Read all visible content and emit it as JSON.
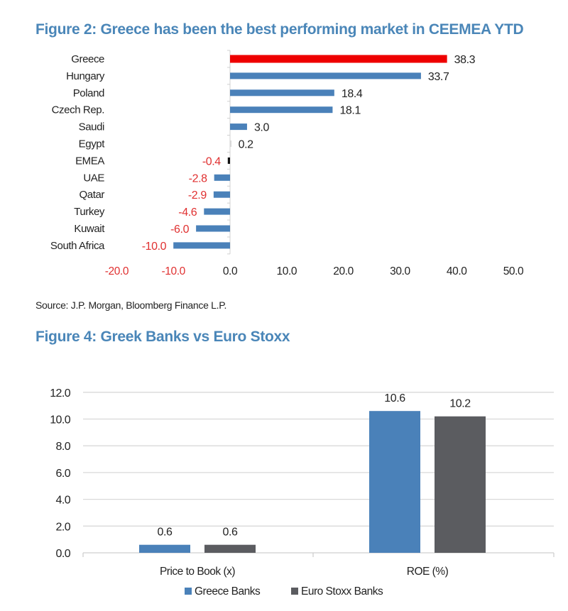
{
  "figure2": {
    "title": "Figure 2: Greece has been the best performing market in CEEMEA YTD",
    "source": "Source: J.P. Morgan, Bloomberg Finance L.P."
  },
  "figure4": {
    "title": "Figure 4: Greek Banks vs Euro Stoxx"
  },
  "colors": {
    "title": "#4a86b8",
    "highlight": "#ee0000",
    "bar_blue": "#4a81b9",
    "bar_gray": "#5b5c60",
    "negative_label": "#e03030",
    "label": "#222222",
    "grid": "#d9d9d9"
  },
  "chart_data": [
    {
      "type": "bar",
      "orientation": "horizontal",
      "title": "Figure 2: Greece has been the best performing market in CEEMEA YTD",
      "categories": [
        "Greece",
        "Hungary",
        "Poland",
        "Czech Rep.",
        "Saudi",
        "Egypt",
        "EMEA",
        "UAE",
        "Qatar",
        "Turkey",
        "Kuwait",
        "South Africa"
      ],
      "values": [
        38.3,
        33.7,
        18.4,
        18.1,
        3.0,
        0.2,
        -0.4,
        -2.8,
        -2.9,
        -4.6,
        -6.0,
        -10.0
      ],
      "value_labels": [
        "38.3",
        "33.7",
        "18.4",
        "18.1",
        "3.0",
        "0.2",
        "-0.4",
        "-2.8",
        "-2.9",
        "-4.6",
        "-6.0",
        "-10.0"
      ],
      "highlight": "Greece",
      "xlim": [
        -20,
        50
      ],
      "xticks": [
        -20,
        -10,
        0,
        10,
        20,
        30,
        40,
        50
      ],
      "xtick_labels": [
        "-20.0",
        "-10.0",
        "0.0",
        "10.0",
        "20.0",
        "30.0",
        "40.0",
        "50.0"
      ],
      "xlabel": "",
      "ylabel": "",
      "grid": false,
      "legend": "none"
    },
    {
      "type": "bar",
      "orientation": "vertical",
      "title": "Figure 4: Greek Banks vs Euro Stoxx",
      "categories": [
        "Price to Book (x)",
        "ROE (%)"
      ],
      "series": [
        {
          "name": "Greece Banks",
          "values": [
            0.6,
            10.6
          ],
          "value_labels": [
            "0.6",
            "10.6"
          ],
          "color": "#4a81b9"
        },
        {
          "name": "Euro Stoxx Banks",
          "values": [
            0.6,
            10.2
          ],
          "value_labels": [
            "0.6",
            "10.2"
          ],
          "color": "#5b5c60"
        }
      ],
      "ylim": [
        0,
        12
      ],
      "yticks": [
        0,
        2,
        4,
        6,
        8,
        10,
        12
      ],
      "ytick_labels": [
        "0.0",
        "2.0",
        "4.0",
        "6.0",
        "8.0",
        "10.0",
        "12.0"
      ],
      "xlabel": "",
      "ylabel": "",
      "grid": true,
      "legend": "bottom-center"
    }
  ]
}
